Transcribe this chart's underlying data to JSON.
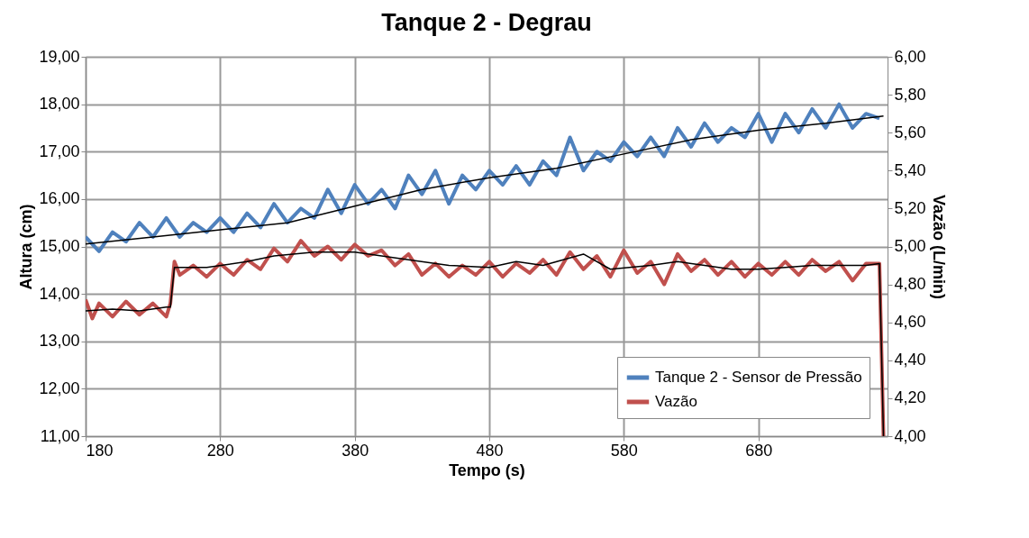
{
  "chart_data": {
    "type": "line",
    "title": "Tanque 2 - Degrau",
    "xlabel": "Tempo (s)",
    "ylabel": "Altura (cm)",
    "y2label": "Vazão (L/min)",
    "xlim": [
      180,
      776
    ],
    "xticks": [
      180,
      280,
      380,
      480,
      580,
      680
    ],
    "ylim": [
      11,
      19
    ],
    "yticks": [
      {
        "value": 11,
        "label": "11,00"
      },
      {
        "value": 12,
        "label": "12,00"
      },
      {
        "value": 13,
        "label": "13,00"
      },
      {
        "value": 14,
        "label": "14,00"
      },
      {
        "value": 15,
        "label": "15,00"
      },
      {
        "value": 16,
        "label": "16,00"
      },
      {
        "value": 17,
        "label": "17,00"
      },
      {
        "value": 18,
        "label": "18,00"
      },
      {
        "value": 19,
        "label": "19,00"
      }
    ],
    "y2lim": [
      4,
      6
    ],
    "y2ticks": [
      {
        "value": 4,
        "label": "4,00"
      },
      {
        "value": 4.2,
        "label": "4,20"
      },
      {
        "value": 4.4,
        "label": "4,40"
      },
      {
        "value": 4.6,
        "label": "4,60"
      },
      {
        "value": 4.8,
        "label": "4,80"
      },
      {
        "value": 5,
        "label": "5,00"
      },
      {
        "value": 5.2,
        "label": "5,20"
      },
      {
        "value": 5.4,
        "label": "5,40"
      },
      {
        "value": 5.6,
        "label": "5,60"
      },
      {
        "value": 5.8,
        "label": "5,80"
      },
      {
        "value": 6,
        "label": "6,00"
      }
    ],
    "grid": true,
    "legend": "bottom right",
    "marker": "none",
    "line_style": "solid",
    "series": [
      {
        "name": "Tanque 2 - Sensor de Pressão",
        "color": "#4f81bd",
        "x": [
          180,
          190,
          200,
          210,
          220,
          230,
          240,
          250,
          260,
          270,
          280,
          290,
          300,
          310,
          320,
          330,
          340,
          350,
          360,
          370,
          380,
          390,
          400,
          410,
          420,
          430,
          440,
          450,
          460,
          470,
          480,
          490,
          500,
          510,
          520,
          530,
          540,
          550,
          560,
          570,
          580,
          590,
          600,
          610,
          620,
          630,
          640,
          650,
          660,
          670,
          680,
          690,
          700,
          710,
          720,
          730,
          740,
          750,
          760,
          770
        ],
        "values": [
          15.2,
          14.9,
          15.3,
          15.1,
          15.5,
          15.2,
          15.6,
          15.2,
          15.5,
          15.3,
          15.6,
          15.3,
          15.7,
          15.4,
          15.9,
          15.5,
          15.8,
          15.6,
          16.2,
          15.7,
          16.3,
          15.9,
          16.2,
          15.8,
          16.5,
          16.1,
          16.6,
          15.9,
          16.5,
          16.2,
          16.6,
          16.3,
          16.7,
          16.3,
          16.8,
          16.5,
          17.3,
          16.6,
          17.0,
          16.8,
          17.2,
          16.9,
          17.3,
          16.9,
          17.5,
          17.1,
          17.6,
          17.2,
          17.5,
          17.3,
          17.8,
          17.2,
          17.8,
          17.4,
          17.9,
          17.5,
          18.0,
          17.5,
          17.8,
          17.7
        ]
      },
      {
        "name": "Vazão",
        "color": "#c0504d",
        "axis": "y2",
        "x": [
          180,
          185,
          190,
          200,
          210,
          220,
          230,
          240,
          243,
          246,
          250,
          260,
          270,
          280,
          290,
          300,
          310,
          320,
          330,
          340,
          350,
          360,
          370,
          380,
          390,
          400,
          410,
          420,
          430,
          440,
          450,
          460,
          470,
          480,
          490,
          500,
          510,
          520,
          530,
          540,
          550,
          560,
          570,
          580,
          590,
          600,
          610,
          620,
          630,
          640,
          650,
          660,
          670,
          680,
          690,
          700,
          710,
          720,
          730,
          740,
          750,
          760,
          770,
          773
        ],
        "values": [
          4.72,
          4.62,
          4.7,
          4.63,
          4.71,
          4.64,
          4.7,
          4.63,
          4.7,
          4.92,
          4.85,
          4.9,
          4.84,
          4.91,
          4.85,
          4.93,
          4.88,
          4.99,
          4.92,
          5.03,
          4.95,
          5.0,
          4.93,
          5.01,
          4.95,
          4.98,
          4.9,
          4.96,
          4.85,
          4.91,
          4.84,
          4.9,
          4.85,
          4.92,
          4.84,
          4.91,
          4.86,
          4.93,
          4.85,
          4.97,
          4.88,
          4.95,
          4.84,
          4.98,
          4.86,
          4.92,
          4.8,
          4.96,
          4.87,
          4.93,
          4.85,
          4.92,
          4.84,
          4.91,
          4.85,
          4.92,
          4.85,
          4.93,
          4.87,
          4.92,
          4.82,
          4.91,
          4.91,
          4.0
        ]
      },
      {
        "color": "#000000",
        "x": [
          180,
          230,
          280,
          330,
          380,
          430,
          480,
          530,
          580,
          630,
          680,
          730,
          773
        ],
        "values": [
          15.05,
          15.2,
          15.35,
          15.5,
          15.85,
          16.2,
          16.45,
          16.65,
          16.95,
          17.25,
          17.45,
          17.6,
          17.75
        ]
      },
      {
        "color": "#000000",
        "axis": "y2",
        "x": [
          180,
          200,
          220,
          240,
          243,
          246,
          270,
          300,
          320,
          350,
          380,
          400,
          420,
          450,
          480,
          500,
          520,
          550,
          570,
          600,
          620,
          640,
          660,
          680,
          700,
          720,
          740,
          760,
          770,
          773
        ],
        "values": [
          4.66,
          4.67,
          4.66,
          4.68,
          4.68,
          4.89,
          4.89,
          4.92,
          4.95,
          4.97,
          4.97,
          4.95,
          4.93,
          4.9,
          4.89,
          4.92,
          4.9,
          4.96,
          4.88,
          4.9,
          4.92,
          4.9,
          4.88,
          4.88,
          4.89,
          4.9,
          4.9,
          4.9,
          4.91,
          4.0
        ]
      }
    ]
  }
}
